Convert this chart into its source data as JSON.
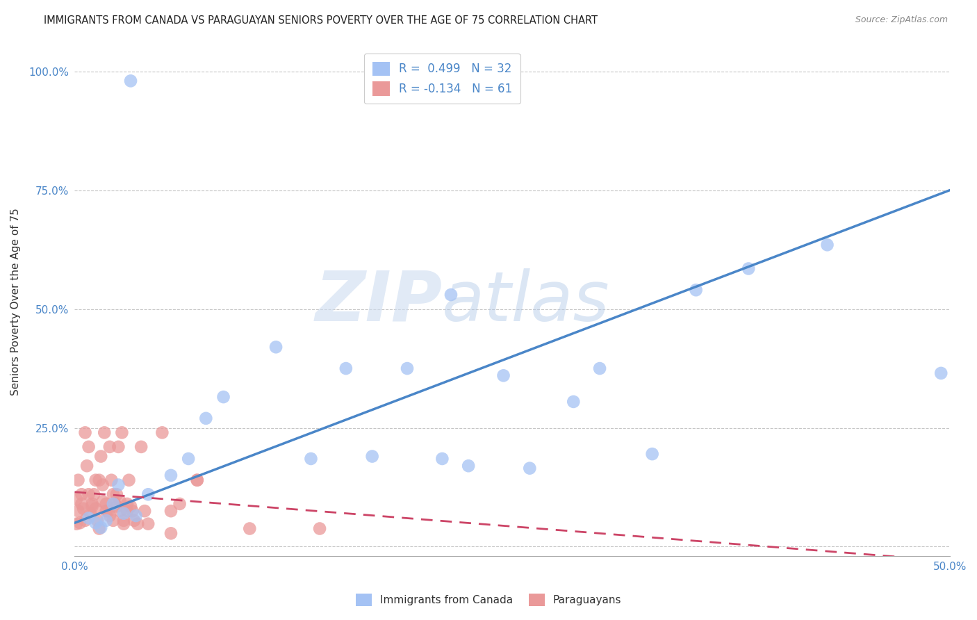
{
  "title": "IMMIGRANTS FROM CANADA VS PARAGUAYAN SENIORS POVERTY OVER THE AGE OF 75 CORRELATION CHART",
  "source": "Source: ZipAtlas.com",
  "ylabel": "Seniors Poverty Over the Age of 75",
  "xlim": [
    0.0,
    0.5
  ],
  "ylim": [
    -0.02,
    1.05
  ],
  "blue_color": "#a4c2f4",
  "pink_color": "#ea9999",
  "blue_line_color": "#4a86c8",
  "pink_line_color": "#cc4466",
  "grid_color": "#c0c0c0",
  "blue_scatter_x": [
    0.032,
    0.008,
    0.012,
    0.015,
    0.018,
    0.022,
    0.025,
    0.028,
    0.035,
    0.042,
    0.055,
    0.065,
    0.075,
    0.085,
    0.115,
    0.135,
    0.155,
    0.17,
    0.19,
    0.21,
    0.215,
    0.225,
    0.245,
    0.26,
    0.285,
    0.3,
    0.33,
    0.355,
    0.385,
    0.43,
    0.495
  ],
  "blue_scatter_y": [
    0.98,
    0.06,
    0.05,
    0.04,
    0.055,
    0.09,
    0.13,
    0.07,
    0.065,
    0.11,
    0.15,
    0.185,
    0.27,
    0.315,
    0.42,
    0.185,
    0.375,
    0.19,
    0.375,
    0.185,
    0.53,
    0.17,
    0.36,
    0.165,
    0.305,
    0.375,
    0.195,
    0.54,
    0.585,
    0.635,
    0.365
  ],
  "pink_scatter_x": [
    0.001,
    0.002,
    0.003,
    0.004,
    0.005,
    0.006,
    0.007,
    0.008,
    0.009,
    0.01,
    0.011,
    0.012,
    0.013,
    0.014,
    0.015,
    0.016,
    0.017,
    0.018,
    0.019,
    0.02,
    0.021,
    0.022,
    0.023,
    0.024,
    0.025,
    0.026,
    0.027,
    0.028,
    0.03,
    0.031,
    0.033,
    0.034,
    0.038,
    0.042,
    0.05,
    0.055,
    0.06,
    0.07,
    0.001,
    0.002,
    0.004,
    0.006,
    0.008,
    0.01,
    0.012,
    0.014,
    0.016,
    0.018,
    0.02,
    0.022,
    0.024,
    0.026,
    0.028,
    0.03,
    0.032,
    0.036,
    0.04,
    0.055,
    0.07,
    0.1,
    0.14
  ],
  "pink_scatter_y": [
    0.1,
    0.14,
    0.05,
    0.11,
    0.08,
    0.24,
    0.17,
    0.21,
    0.07,
    0.09,
    0.11,
    0.08,
    0.055,
    0.14,
    0.19,
    0.13,
    0.24,
    0.09,
    0.075,
    0.21,
    0.14,
    0.055,
    0.09,
    0.11,
    0.21,
    0.075,
    0.24,
    0.048,
    0.09,
    0.14,
    0.075,
    0.055,
    0.21,
    0.048,
    0.24,
    0.075,
    0.09,
    0.14,
    0.048,
    0.075,
    0.09,
    0.055,
    0.11,
    0.085,
    0.14,
    0.038,
    0.095,
    0.075,
    0.065,
    0.11,
    0.085,
    0.095,
    0.055,
    0.075,
    0.085,
    0.048,
    0.075,
    0.028,
    0.14,
    0.038,
    0.038
  ]
}
